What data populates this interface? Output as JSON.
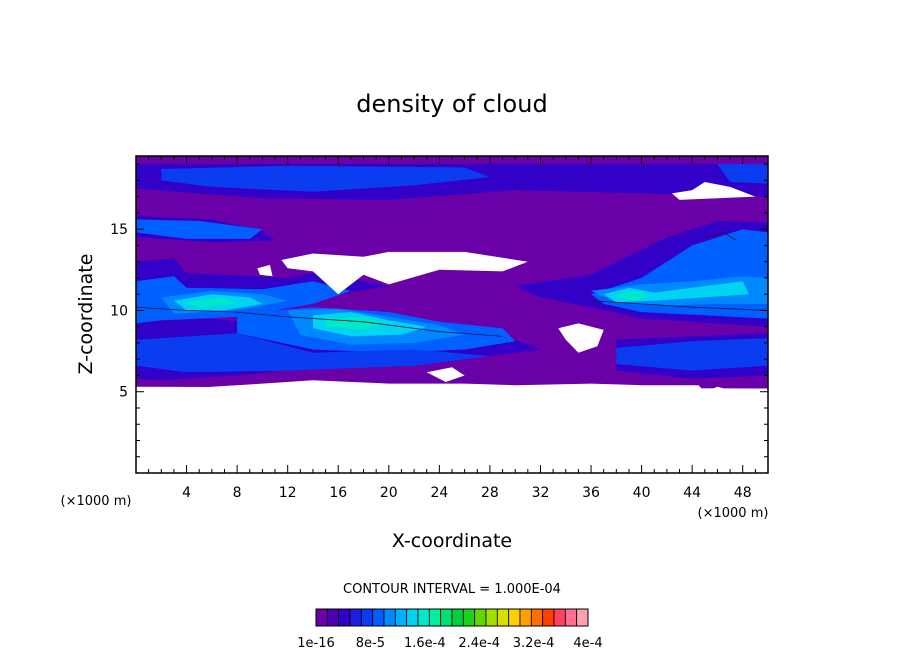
{
  "chart_data": {
    "type": "heatmap",
    "title": "density of cloud",
    "xlabel": "X-coordinate",
    "ylabel": "Z-coordinate",
    "x_unit": "(×1000 m)",
    "y_unit": "(×1000 m)",
    "xlim": [
      0,
      50
    ],
    "ylim": [
      0,
      19.5
    ],
    "x_ticks": [
      4,
      8,
      12,
      16,
      20,
      24,
      28,
      32,
      36,
      40,
      44,
      48
    ],
    "y_ticks": [
      5,
      10,
      15
    ],
    "contour_interval_text": "CONTOUR INTERVAL = 1.000E-04",
    "colorbar": {
      "colors": [
        "#6a00a8",
        "#4b00b4",
        "#3300c8",
        "#1e1ee0",
        "#0a3cf0",
        "#0060ff",
        "#0088ff",
        "#00b0ff",
        "#00d4f0",
        "#00e8c8",
        "#00f0a0",
        "#00e070",
        "#00d040",
        "#20d020",
        "#60d800",
        "#a0e000",
        "#d8e000",
        "#ffd000",
        "#ffa000",
        "#ff7000",
        "#ff4000",
        "#ff4060",
        "#ff7090",
        "#ffa0b0"
      ],
      "labels": [
        "1e-16",
        "8e-5",
        "1.6e-4",
        "2.4e-4",
        "3.2e-4",
        "4e-4"
      ]
    },
    "layers": [
      {
        "level": "lowest",
        "color": "#6a00a8",
        "extent_z": [
          5.2,
          19.5
        ],
        "note": "cloud region"
      },
      {
        "level": "low",
        "color": "#3300c8",
        "features": [
          "upper band z 17-19",
          "band z 14-15.5 x 0-10",
          "band z 12.5-15 x 34-50"
        ]
      },
      {
        "level": "medium",
        "color": "#0060ff",
        "features": [
          "upper band z 17.5-19 x 2-28",
          "layer z 9-12 x 0-12",
          "layer z 7-10 x 10-30",
          "layer z 10-12 x 36-50"
        ]
      },
      {
        "level": "high",
        "color": "#00e8c8",
        "features": [
          "core z 10-11 x 3-8",
          "core z 8.5-9.5 x 13-19",
          "core z 10.5-11.5 x 38-41"
        ]
      }
    ],
    "clear_regions": [
      "z 0-5 across all x",
      "z 12.5-13.5 x 11-31",
      "z 17-18 x 42-49",
      "z 8-9 x 33-37"
    ]
  }
}
